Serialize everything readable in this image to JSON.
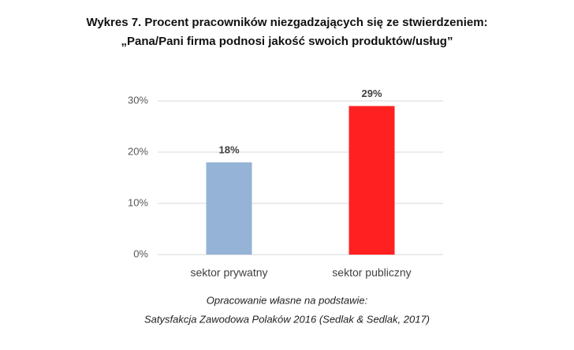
{
  "chart_data": {
    "type": "bar",
    "title": "Wykres 7. Procent pracowników niezgadzających się ze stwierdzeniem:",
    "subtitle": "„Pana/Pani firma podnosi jakość swoich produktów/usług”",
    "categories": [
      "sektor prywatny",
      "sektor publiczny"
    ],
    "values": [
      18,
      29
    ],
    "value_labels": [
      "18%",
      "29%"
    ],
    "colors": [
      "#95b3d7",
      "#ff2121"
    ],
    "ylim": [
      0,
      30
    ],
    "yticks": [
      {
        "value": 0,
        "label": "0%"
      },
      {
        "value": 10,
        "label": "10%"
      },
      {
        "value": 20,
        "label": "20%"
      },
      {
        "value": 30,
        "label": "30%"
      }
    ],
    "grid": true,
    "source": [
      "Opracowanie własne na podstawie:",
      "Satysfakcja Zawodowa Polaków 2016 (Sedlak & Sedlak, 2017)"
    ]
  }
}
